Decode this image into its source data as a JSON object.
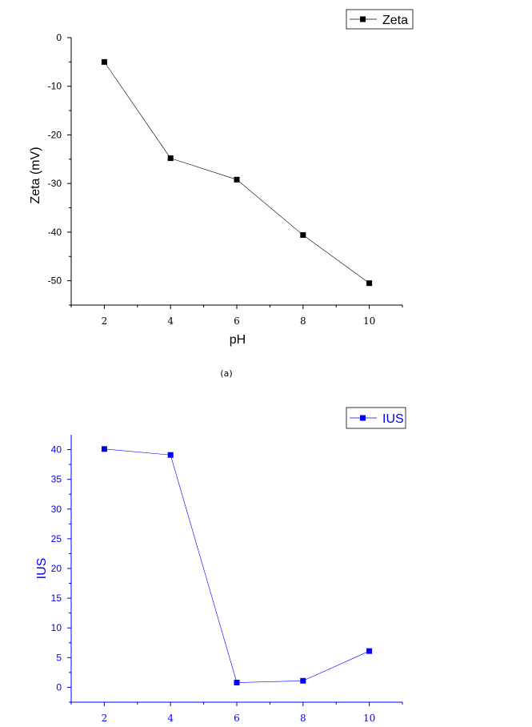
{
  "caption": "(a)",
  "chart_data": [
    {
      "type": "line",
      "title": "",
      "xlabel": "pH",
      "ylabel": "Zeta (mV)",
      "x": [
        2,
        4,
        6,
        8,
        10
      ],
      "series": [
        {
          "name": "Zeta",
          "values": [
            -5,
            -24.8,
            -29.2,
            -40.6,
            -50.5
          ],
          "color": "#000000",
          "marker": "square"
        }
      ],
      "xlim": [
        1,
        11
      ],
      "ylim": [
        -55,
        0
      ],
      "xticks": [
        "2",
        "4",
        "6",
        "8",
        "10"
      ],
      "yticks": [
        "0",
        "-10",
        "-20",
        "-30",
        "-40",
        "-50"
      ],
      "ytick_values": [
        0,
        -10,
        -20,
        -30,
        -40,
        -50
      ],
      "grid": false,
      "legend": "top-right",
      "axis_color": "#000000"
    },
    {
      "type": "line",
      "title": "",
      "xlabel": "",
      "ylabel": "IUS",
      "x": [
        2,
        4,
        6,
        8,
        10
      ],
      "series": [
        {
          "name": "IUS",
          "values": [
            40.1,
            39.1,
            0.8,
            1.1,
            6.1
          ],
          "color": "#0000ff",
          "marker": "square"
        }
      ],
      "xlim": [
        1,
        11
      ],
      "ylim": [
        -2.5,
        42.5
      ],
      "xticks": [
        "2",
        "4",
        "6",
        "8",
        "10"
      ],
      "yticks": [
        "40",
        "35",
        "30",
        "25",
        "20",
        "15",
        "10",
        "5",
        "0"
      ],
      "ytick_values": [
        40,
        35,
        30,
        25,
        20,
        15,
        10,
        5,
        0
      ],
      "grid": false,
      "legend": "top-right",
      "axis_color": "#0000ff"
    }
  ]
}
